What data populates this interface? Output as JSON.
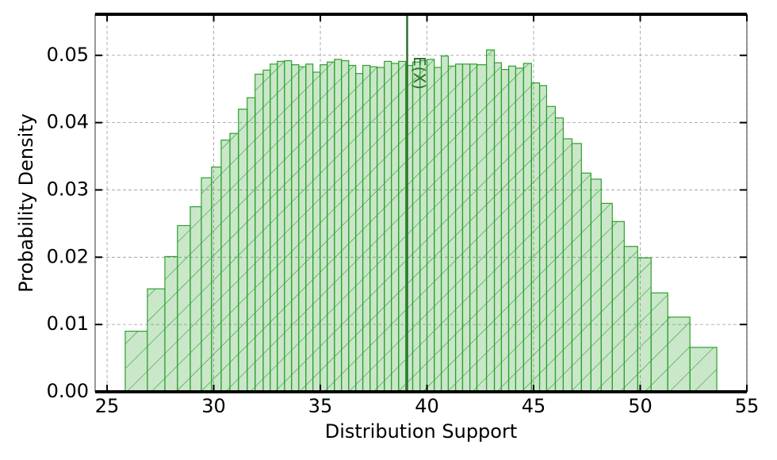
{
  "chart_data": {
    "type": "histogram",
    "xlabel": "Distribution Support",
    "ylabel": "Probability Density",
    "bins": [
      25.85,
      26.89,
      27.71,
      28.3,
      28.9,
      29.42,
      29.9,
      30.35,
      30.76,
      31.16,
      31.57,
      31.94,
      32.32,
      32.65,
      32.98,
      33.32,
      33.65,
      33.99,
      34.32,
      34.65,
      34.99,
      35.32,
      35.66,
      35.99,
      36.33,
      36.66,
      36.99,
      37.33,
      37.66,
      38.0,
      38.33,
      38.67,
      39.0,
      39.33,
      39.67,
      40.0,
      40.34,
      40.67,
      41.0,
      41.34,
      41.67,
      42.01,
      42.34,
      42.79,
      43.16,
      43.49,
      43.83,
      44.16,
      44.53,
      44.9,
      45.28,
      45.61,
      46.02,
      46.39,
      46.8,
      47.24,
      47.69,
      48.17,
      48.69,
      49.25,
      49.88,
      50.51,
      51.29,
      52.33,
      53.59
    ],
    "counts": [
      0.009,
      0.0153,
      0.0201,
      0.0247,
      0.0275,
      0.0318,
      0.0334,
      0.0374,
      0.0384,
      0.042,
      0.0437,
      0.0472,
      0.0478,
      0.0487,
      0.0491,
      0.0492,
      0.0486,
      0.0483,
      0.0487,
      0.0475,
      0.0486,
      0.049,
      0.0494,
      0.0492,
      0.0485,
      0.0473,
      0.0485,
      0.0483,
      0.0482,
      0.0491,
      0.0488,
      0.0491,
      0.0485,
      0.049,
      0.0492,
      0.0494,
      0.0482,
      0.0499,
      0.0484,
      0.0487,
      0.0487,
      0.0487,
      0.0486,
      0.0508,
      0.0489,
      0.0479,
      0.0484,
      0.0481,
      0.0488,
      0.0459,
      0.0455,
      0.0424,
      0.0407,
      0.0376,
      0.0369,
      0.0325,
      0.0316,
      0.028,
      0.0253,
      0.0216,
      0.0199,
      0.0147,
      0.0111,
      0.0066
    ],
    "color": "#2ca02c",
    "mean_line": {
      "x": 39.07,
      "label": "E(X)",
      "color": "#2e6f2e"
    },
    "xlim": [
      24.44,
      55
    ],
    "xticks": [
      25,
      30,
      35,
      40,
      45,
      50,
      55
    ],
    "ylim": [
      0,
      0.0561
    ],
    "yticks": [
      {
        "value": 0,
        "label": "0.00"
      },
      0.01,
      0.02,
      0.03,
      0.04,
      0.05
    ],
    "grid": true
  }
}
